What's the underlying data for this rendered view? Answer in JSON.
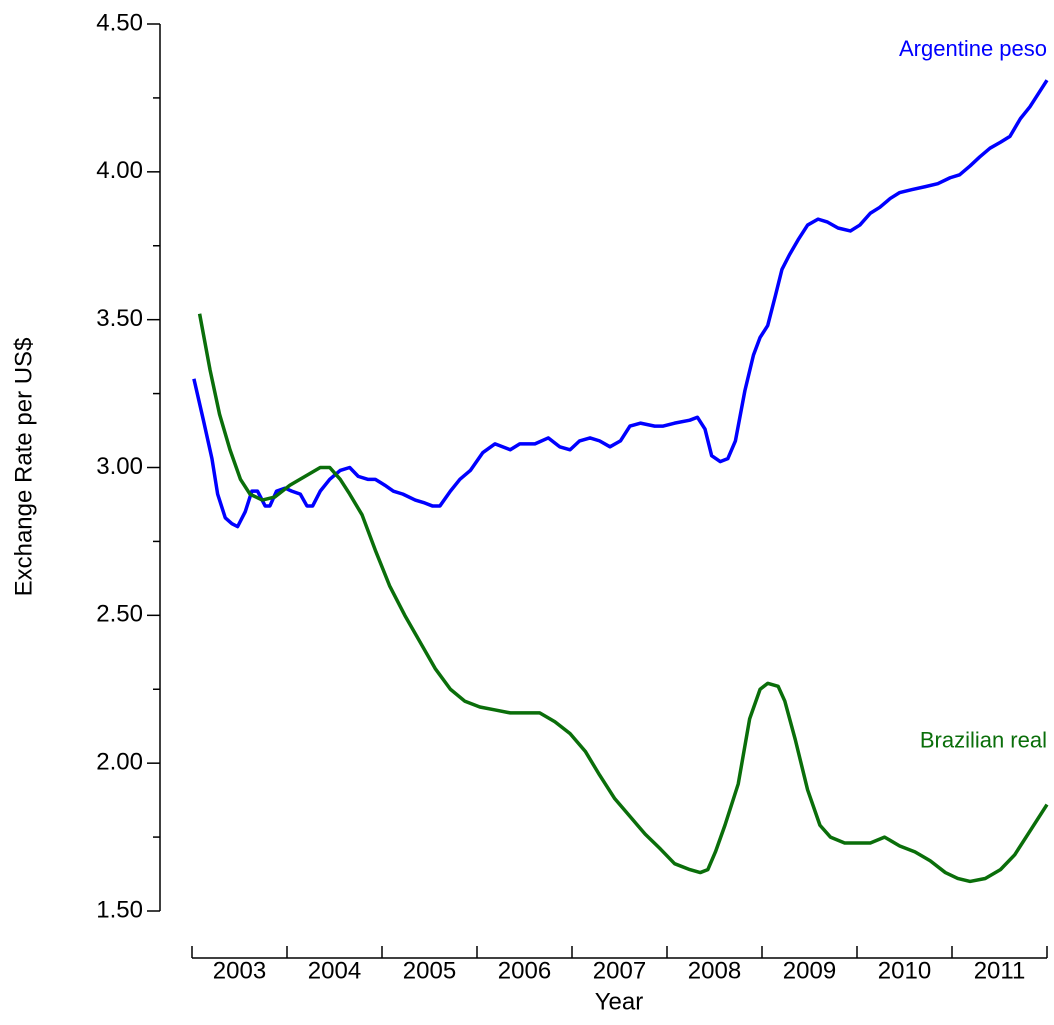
{
  "chart_data": {
    "type": "line",
    "xlabel": "Year",
    "ylabel": "Exchange Rate per US$",
    "xlim": [
      2003,
      2012
    ],
    "xticks": [
      2003,
      2004,
      2005,
      2006,
      2007,
      2008,
      2009,
      2010,
      2011,
      2012
    ],
    "categories": [
      "2003",
      "2004",
      "2005",
      "2006",
      "2007",
      "2008",
      "2009",
      "2010",
      "2011"
    ],
    "ylim": [
      1.5,
      4.5
    ],
    "yticks": [
      {
        "value": 1.5,
        "label": "1.50"
      },
      {
        "value": 2,
        "label": "2.00"
      },
      {
        "value": 2.5,
        "label": "2.50"
      },
      {
        "value": 3,
        "label": "3.00"
      },
      {
        "value": 3.5,
        "label": "3.50"
      },
      {
        "value": 4,
        "label": "4.00"
      },
      {
        "value": 4.5,
        "label": "4.50"
      }
    ],
    "yminorticks": [
      1.75,
      2.25,
      2.75,
      3.25,
      3.75,
      4.25
    ],
    "grid": false,
    "series": [
      {
        "name": "Argentine peso",
        "color": "#0000ff",
        "x": [
          2003.02,
          2003.12,
          2003.21,
          2003.27,
          2003.35,
          2003.42,
          2003.48,
          2003.56,
          2003.63,
          2003.69,
          2003.77,
          2003.82,
          2003.89,
          2003.98,
          2004.05,
          2004.14,
          2004.21,
          2004.27,
          2004.35,
          2004.45,
          2004.56,
          2004.66,
          2004.75,
          2004.85,
          2004.93,
          2005.03,
          2005.12,
          2005.22,
          2005.35,
          2005.45,
          2005.53,
          2005.61,
          2005.72,
          2005.82,
          2005.93,
          2006.06,
          2006.19,
          2006.35,
          2006.45,
          2006.61,
          2006.75,
          2006.87,
          2006.98,
          2007.08,
          2007.19,
          2007.29,
          2007.4,
          2007.51,
          2007.61,
          2007.72,
          2007.87,
          2007.96,
          2008.08,
          2008.24,
          2008.32,
          2008.4,
          2008.47,
          2008.56,
          2008.64,
          2008.72,
          2008.82,
          2008.91,
          2008.98,
          2009.06,
          2009.14,
          2009.21,
          2009.29,
          2009.38,
          2009.48,
          2009.59,
          2009.69,
          2009.8,
          2009.93,
          2010.03,
          2010.14,
          2010.24,
          2010.35,
          2010.45,
          2010.58,
          2010.72,
          2010.85,
          2010.98,
          2011.08,
          2011.19,
          2011.29,
          2011.4,
          2011.51,
          2011.61,
          2011.72,
          2011.82,
          2012.0
        ],
        "values": [
          3.3,
          3.16,
          3.03,
          2.91,
          2.83,
          2.81,
          2.8,
          2.85,
          2.92,
          2.92,
          2.87,
          2.87,
          2.92,
          2.93,
          2.92,
          2.91,
          2.87,
          2.87,
          2.92,
          2.96,
          2.99,
          3.0,
          2.97,
          2.96,
          2.96,
          2.94,
          2.92,
          2.91,
          2.89,
          2.88,
          2.87,
          2.87,
          2.92,
          2.96,
          2.99,
          3.05,
          3.08,
          3.06,
          3.08,
          3.08,
          3.1,
          3.07,
          3.06,
          3.09,
          3.1,
          3.09,
          3.07,
          3.09,
          3.14,
          3.15,
          3.14,
          3.14,
          3.15,
          3.16,
          3.17,
          3.13,
          3.04,
          3.02,
          3.03,
          3.09,
          3.26,
          3.38,
          3.44,
          3.48,
          3.58,
          3.67,
          3.72,
          3.77,
          3.82,
          3.84,
          3.83,
          3.81,
          3.8,
          3.82,
          3.86,
          3.88,
          3.91,
          3.93,
          3.94,
          3.95,
          3.96,
          3.98,
          3.99,
          4.02,
          4.05,
          4.08,
          4.1,
          4.12,
          4.18,
          4.22,
          4.31
        ]
      },
      {
        "name": "Brazilian real",
        "color": "#0a6e0a",
        "x": [
          2003.08,
          2003.19,
          2003.29,
          2003.4,
          2003.51,
          2003.61,
          2003.74,
          2003.87,
          2004.03,
          2004.19,
          2004.35,
          2004.45,
          2004.56,
          2004.66,
          2004.79,
          2004.93,
          2005.08,
          2005.24,
          2005.4,
          2005.56,
          2005.72,
          2005.87,
          2006.03,
          2006.19,
          2006.35,
          2006.51,
          2006.66,
          2006.82,
          2006.98,
          2007.14,
          2007.29,
          2007.45,
          2007.61,
          2007.77,
          2007.93,
          2008.08,
          2008.24,
          2008.35,
          2008.43,
          2008.51,
          2008.61,
          2008.75,
          2008.87,
          2008.98,
          2009.06,
          2009.17,
          2009.24,
          2009.35,
          2009.48,
          2009.61,
          2009.72,
          2009.87,
          2010.03,
          2010.14,
          2010.29,
          2010.45,
          2010.61,
          2010.77,
          2010.93,
          2011.06,
          2011.19,
          2011.35,
          2011.51,
          2011.66,
          2011.82,
          2012.0
        ],
        "values": [
          3.52,
          3.33,
          3.18,
          3.06,
          2.96,
          2.91,
          2.89,
          2.9,
          2.94,
          2.97,
          3.0,
          3.0,
          2.96,
          2.91,
          2.84,
          2.72,
          2.6,
          2.5,
          2.41,
          2.32,
          2.25,
          2.21,
          2.19,
          2.18,
          2.17,
          2.17,
          2.17,
          2.14,
          2.1,
          2.04,
          1.96,
          1.88,
          1.82,
          1.76,
          1.71,
          1.66,
          1.64,
          1.63,
          1.64,
          1.7,
          1.79,
          1.93,
          2.15,
          2.25,
          2.27,
          2.26,
          2.21,
          2.08,
          1.91,
          1.79,
          1.75,
          1.73,
          1.73,
          1.73,
          1.75,
          1.72,
          1.7,
          1.67,
          1.63,
          1.61,
          1.6,
          1.61,
          1.64,
          1.69,
          1.77,
          1.86
        ]
      }
    ]
  }
}
